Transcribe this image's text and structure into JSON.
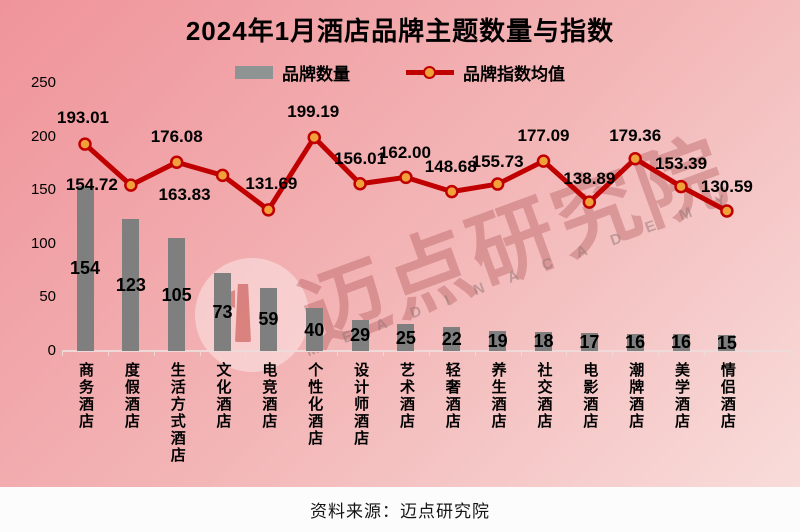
{
  "title": "2024年1月酒店品牌主题数量与指数",
  "legend": {
    "items": [
      {
        "label": "品牌数量",
        "type": "bar",
        "color": "#8e9494"
      },
      {
        "label": "品牌指数均值",
        "type": "line",
        "color": "#c00000",
        "marker_color": "#f0a139"
      }
    ]
  },
  "watermark": {
    "cn": "迈点研究院",
    "en": "M E A D I N  A C A D E M Y"
  },
  "source": "资料来源：迈点研究院",
  "chart_data": {
    "type": "bar+line",
    "title": "2024年1月酒店品牌主题数量与指数",
    "categories": [
      "商务酒店",
      "度假酒店",
      "生活方式酒店",
      "文化酒店",
      "电竞酒店",
      "个性化酒店",
      "设计师酒店",
      "艺术酒店",
      "轻奢酒店",
      "养生酒店",
      "社交酒店",
      "电影酒店",
      "潮牌酒店",
      "美学酒店",
      "情侣酒店"
    ],
    "series": [
      {
        "name": "品牌数量",
        "type": "bar",
        "color": "#7f7f7f",
        "values": [
          154,
          123,
          105,
          73,
          59,
          40,
          29,
          25,
          22,
          19,
          18,
          17,
          16,
          16,
          15
        ]
      },
      {
        "name": "品牌指数均值",
        "type": "line",
        "color": "#c00000",
        "marker_color": "#f0a139",
        "values": [
          193.01,
          154.72,
          176.08,
          163.83,
          131.69,
          199.19,
          156.01,
          162.0,
          148.68,
          155.73,
          177.09,
          138.89,
          179.36,
          153.39,
          130.59
        ],
        "labels": [
          "193.01",
          "154.72",
          "176.08",
          "163.83",
          "131.69",
          "199.19",
          "156.01",
          "162.00",
          "148.68",
          "155.73",
          "177.09",
          "138.89",
          "179.36",
          "153.39",
          "130.59"
        ],
        "label_offsets": [
          [
            -2,
            -27
          ],
          [
            -39,
            -1
          ],
          [
            0,
            -26
          ],
          [
            -38,
            19
          ],
          [
            3,
            -27
          ],
          [
            -1,
            -26
          ],
          [
            0,
            -26
          ],
          [
            -1,
            -25
          ],
          [
            -1,
            -26
          ],
          [
            0,
            -23
          ],
          [
            0,
            -26
          ],
          [
            0,
            -24
          ],
          [
            0,
            -24
          ],
          [
            0,
            -24
          ],
          [
            0,
            -25
          ]
        ]
      }
    ],
    "ylim": [
      0,
      250
    ],
    "yticks": [
      0,
      50,
      100,
      150,
      200,
      250
    ],
    "grid": false,
    "legend_position": "top",
    "value_labels": true
  }
}
